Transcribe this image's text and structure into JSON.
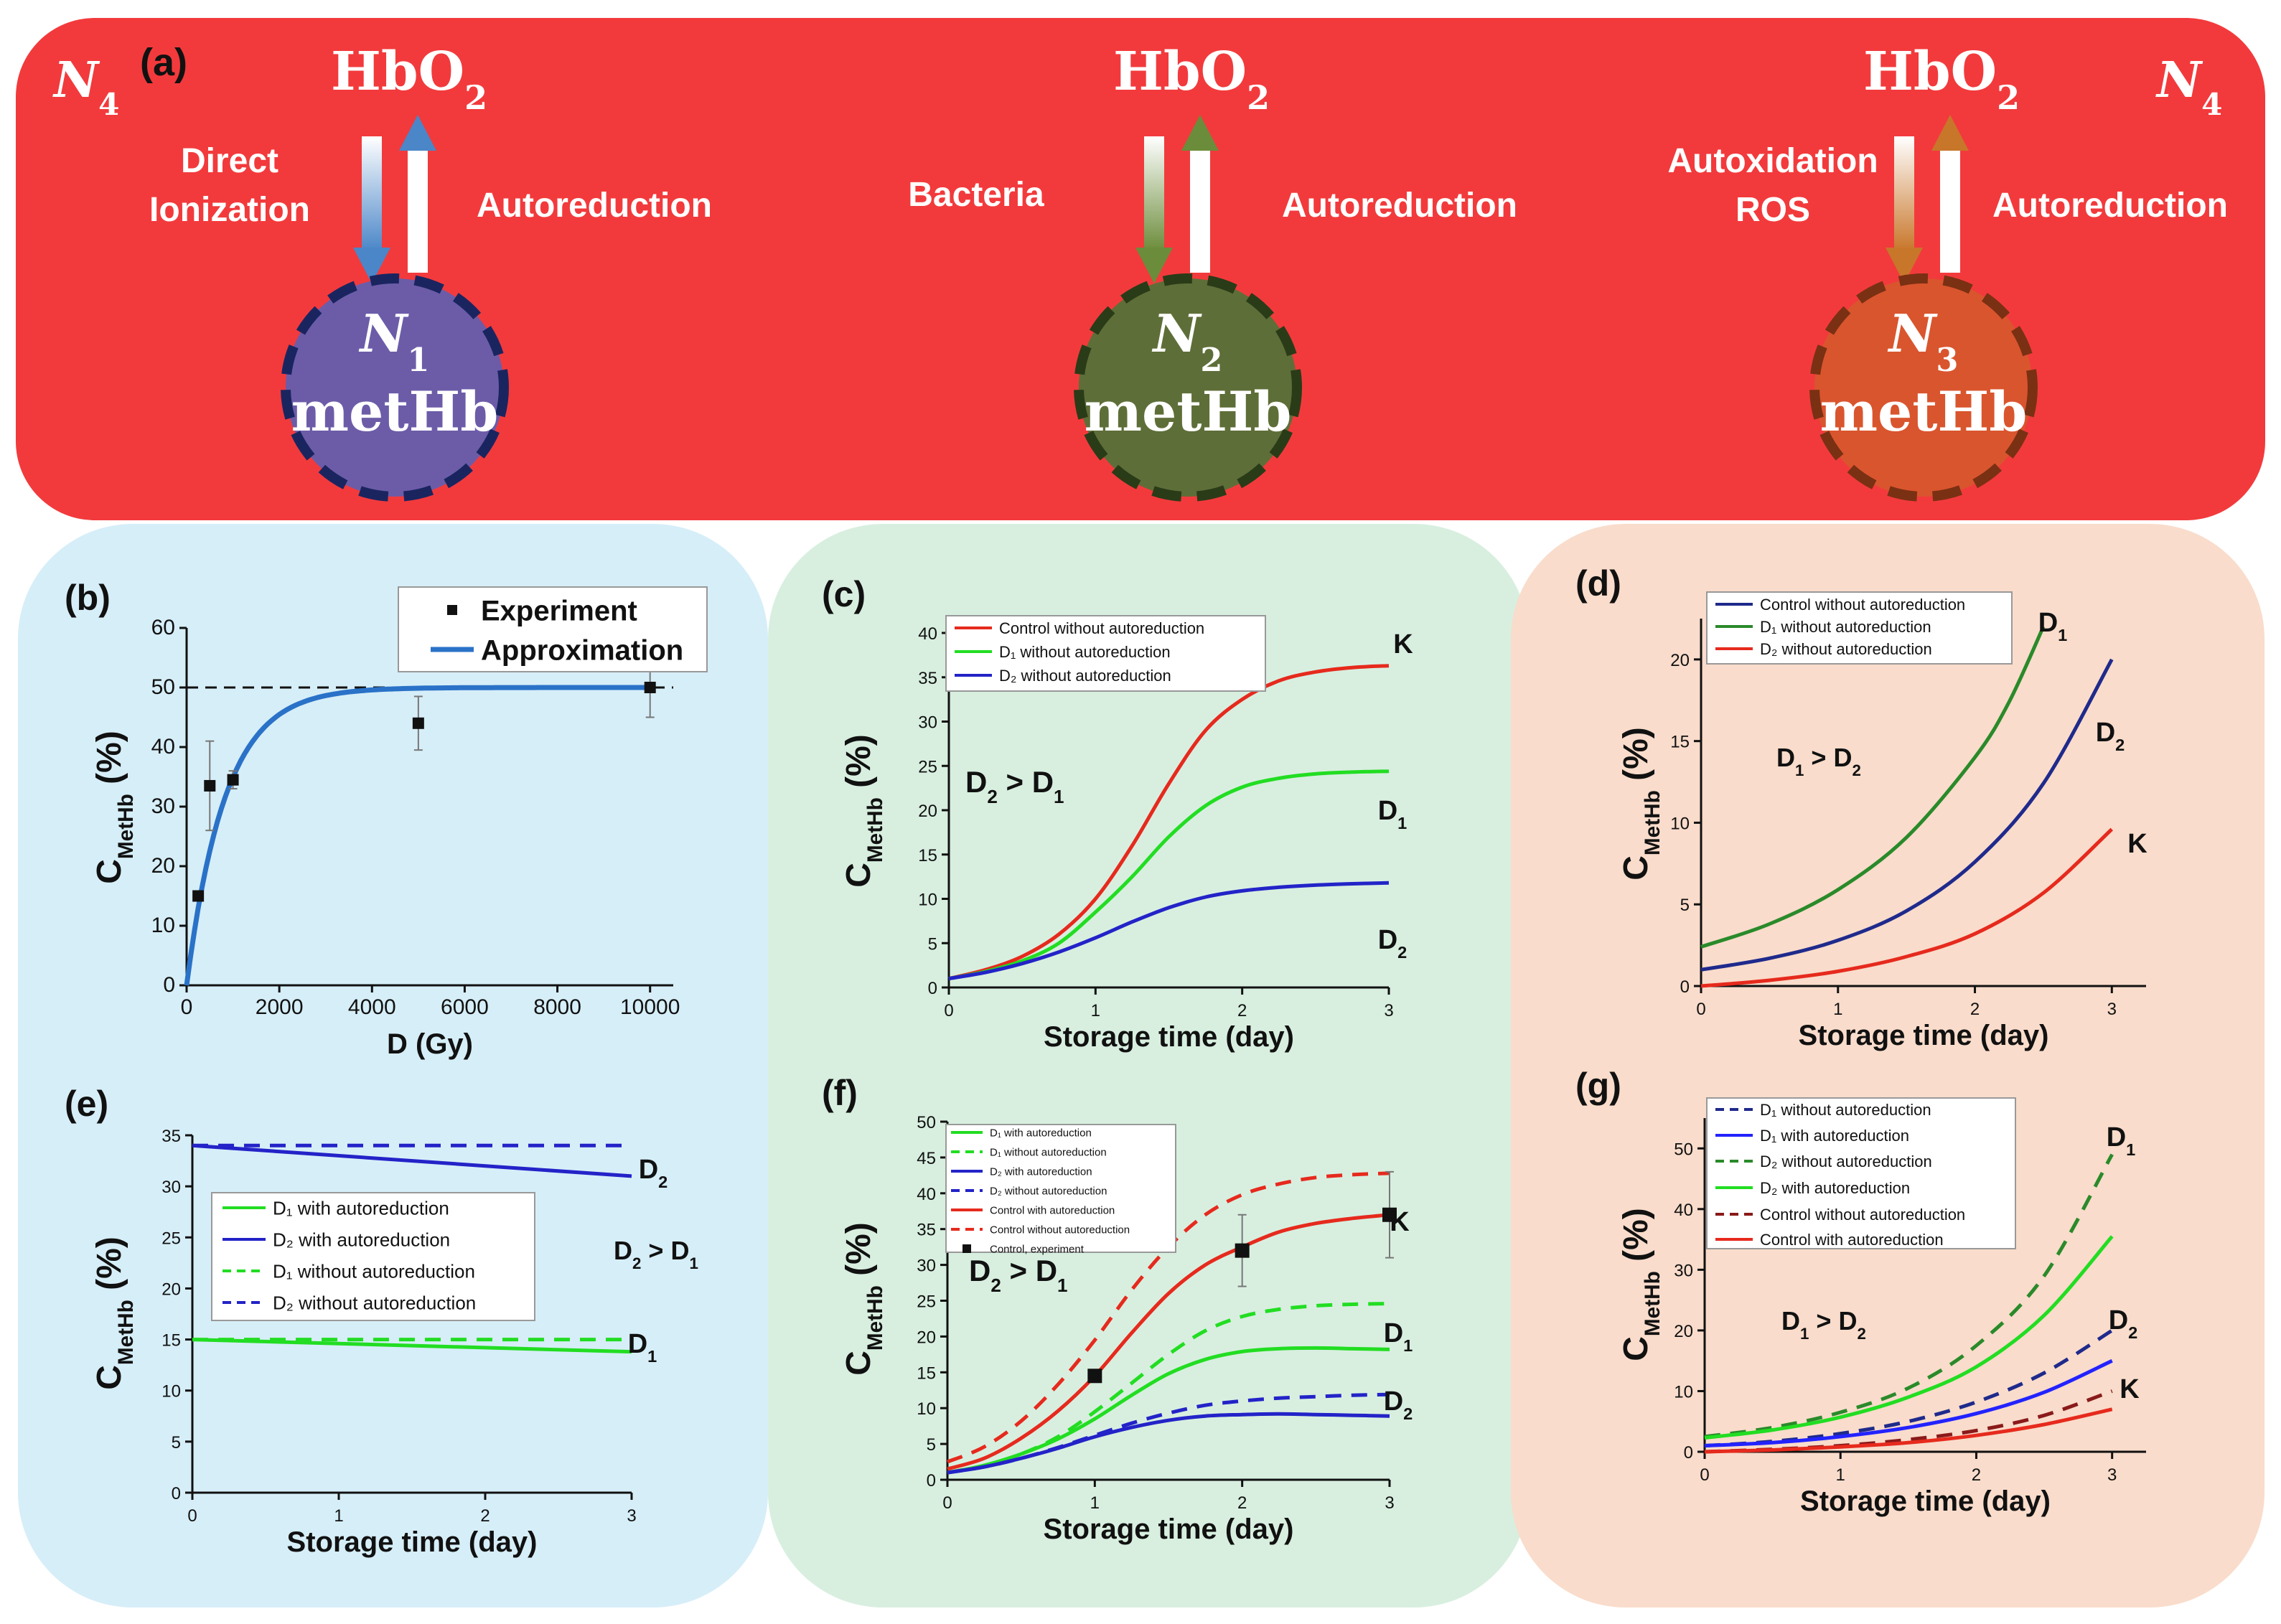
{
  "colors": {
    "banner": "#f23a3c",
    "panel_b": "#d6eef8",
    "panel_cf": "#d8efe0",
    "panel_dg": "#f9dccb",
    "red": "#e62a1d",
    "green": "#22dd22",
    "blue": "#2323c8",
    "darkgreen": "#2a8a2a",
    "navy": "#1f2a8c",
    "steel": "#2a72c8"
  },
  "panel_a": {
    "label": "(a)",
    "n4_left": "N",
    "n4_right": "N",
    "n4_sub": "4",
    "groups": [
      {
        "top": "HbO",
        "top_sub": "2",
        "left_lines": [
          "Direct",
          "Ionization"
        ],
        "right": "Autoreduction",
        "circle_letter": "N",
        "circle_sub": "1",
        "circle_label": "metHb",
        "circle_fill": "#6c5ca8",
        "circle_stroke": "#1a2560"
      },
      {
        "top": "HbO",
        "top_sub": "2",
        "left_lines": [
          "Bacteria"
        ],
        "right": "Autoreduction",
        "circle_letter": "N",
        "circle_sub": "2",
        "circle_label": "metHb",
        "circle_fill": "#5e6e38",
        "circle_stroke": "#2a3b18"
      },
      {
        "top": "HbO",
        "top_sub": "2",
        "left_lines": [
          "Autoxidation",
          "ROS"
        ],
        "right": "Autoreduction",
        "circle_letter": "N",
        "circle_sub": "3",
        "circle_label": "metHb",
        "circle_fill": "#d9552e",
        "circle_stroke": "#7a3013"
      }
    ]
  },
  "chart_data": [
    {
      "id": "b",
      "panel_label": "(b)",
      "type": "scatter",
      "xlabel": "D (Gy)",
      "ylabel": "C",
      "ylabel_sub": "MetHb",
      "ylabel_unit": " (%)",
      "xlim": [
        0,
        10500
      ],
      "ylim": [
        0,
        60
      ],
      "xticks": [
        0,
        2000,
        4000,
        6000,
        8000,
        10000
      ],
      "xtick_labels": [
        "0",
        "2000",
        "4000",
        "6000",
        "8000",
        "10000"
      ],
      "yticks": [
        0,
        10,
        20,
        30,
        40,
        50,
        60
      ],
      "ytick_labels": [
        "0",
        "10",
        "20",
        "30",
        "40",
        "50",
        "60"
      ],
      "hline": 50,
      "points": [
        {
          "x": 250,
          "y": 15,
          "err": 0
        },
        {
          "x": 500,
          "y": 33.5,
          "err": 7.5
        },
        {
          "x": 1000,
          "y": 34.5,
          "err": 1.5
        },
        {
          "x": 5000,
          "y": 44,
          "err": 4.5
        },
        {
          "x": 10000,
          "y": 50,
          "err": 5
        }
      ],
      "curve": {
        "func": "saturating",
        "ymax": 50,
        "k": 0.0012
      },
      "legend": [
        {
          "label": "Experiment",
          "kind": "marker"
        },
        {
          "label": "Approximation",
          "kind": "line"
        }
      ]
    },
    {
      "id": "c",
      "panel_label": "(c)",
      "type": "line",
      "xlabel": "Storage time (day)",
      "ylabel": "C",
      "ylabel_sub": "MetHb",
      "ylabel_unit": " (%)",
      "xlim": [
        0,
        3
      ],
      "ylim": [
        0,
        40
      ],
      "xticks": [
        0,
        1,
        2,
        3
      ],
      "xtick_labels": [
        "0",
        "1",
        "2",
        "3"
      ],
      "yticks": [
        0,
        5,
        10,
        15,
        20,
        25,
        30,
        35,
        40
      ],
      "ytick_labels": [
        "0",
        "5",
        "10",
        "15",
        "20",
        "25",
        "30",
        "35",
        "40"
      ],
      "x": [
        0,
        0.25,
        0.5,
        0.75,
        1,
        1.25,
        1.5,
        1.75,
        2,
        2.25,
        2.5,
        2.75,
        3
      ],
      "series": [
        {
          "name": "Control without autoreduction",
          "color": "#e62a1d",
          "dash": false,
          "values": [
            1,
            2,
            3.5,
            6,
            10,
            16,
            23,
            29,
            32.5,
            34.6,
            35.6,
            36.1,
            36.3
          ]
        },
        {
          "name": "D₁ without autoreduction",
          "color": "#22dd22",
          "dash": false,
          "values": [
            1,
            1.8,
            3,
            5,
            8.5,
            12.5,
            17,
            20.5,
            22.6,
            23.6,
            24.1,
            24.3,
            24.4
          ]
        },
        {
          "name": "D₂ without autoreduction",
          "color": "#2323c8",
          "dash": false,
          "values": [
            1,
            1.7,
            2.7,
            4,
            5.6,
            7.4,
            9,
            10.2,
            10.9,
            11.3,
            11.55,
            11.7,
            11.8
          ]
        }
      ],
      "annotations": [
        {
          "text": "K"
        },
        {
          "text": "D",
          "sub": "1"
        },
        {
          "text": "D",
          "sub": "2"
        }
      ],
      "inequality": {
        "a": "D",
        "a_sub": "2",
        "op": " > ",
        "b": "D",
        "b_sub": "1"
      }
    },
    {
      "id": "d",
      "panel_label": "(d)",
      "type": "line",
      "xlabel": "Storage time (day)",
      "ylabel": "C",
      "ylabel_sub": "MetHb",
      "ylabel_unit": " (%)",
      "xlim": [
        0,
        3.25
      ],
      "ylim": [
        0,
        22.5
      ],
      "xticks": [
        0,
        1,
        2,
        3
      ],
      "xtick_labels": [
        "0",
        "1",
        "2",
        "3"
      ],
      "yticks": [
        0,
        5,
        10,
        15,
        20
      ],
      "ytick_labels": [
        "0",
        "5",
        "10",
        "15",
        "20"
      ],
      "series": [
        {
          "name": "Control without autoreduction",
          "color": "#1f2a8c",
          "dash": false,
          "x": [
            0,
            0.5,
            1,
            1.5,
            2,
            2.5,
            3
          ],
          "values": [
            1,
            1.7,
            2.8,
            4.6,
            7.6,
            12.4,
            20
          ]
        },
        {
          "name": "D₁ without autoreduction",
          "color": "#2a8a2a",
          "dash": false,
          "x": [
            0,
            0.5,
            1,
            1.5,
            2,
            2.25,
            2.5
          ],
          "values": [
            2.4,
            3.8,
            5.9,
            9.1,
            14,
            17.4,
            22
          ]
        },
        {
          "name": "D₂ without autoreduction",
          "color": "#e62a1d",
          "dash": false,
          "x": [
            0,
            0.5,
            1,
            1.5,
            2,
            2.5,
            3
          ],
          "values": [
            0,
            0.35,
            0.9,
            1.8,
            3.2,
            5.7,
            9.6
          ]
        }
      ],
      "annotations": [
        {
          "text": "D",
          "sub": "1"
        },
        {
          "text": "D",
          "sub": "2"
        },
        {
          "text": "K"
        }
      ],
      "inequality": {
        "a": "D",
        "a_sub": "1",
        "op": " > ",
        "b": "D",
        "b_sub": "2"
      }
    },
    {
      "id": "e",
      "panel_label": "(e)",
      "type": "line",
      "xlabel": "Storage time (day)",
      "ylabel": "C",
      "ylabel_sub": "MetHb",
      "ylabel_unit": " (%)",
      "xlim": [
        0,
        3
      ],
      "ylim": [
        0,
        35
      ],
      "xticks": [
        0,
        1,
        2,
        3
      ],
      "xtick_labels": [
        "0",
        "1",
        "2",
        "3"
      ],
      "yticks": [
        0,
        5,
        10,
        15,
        20,
        25,
        30,
        35
      ],
      "ytick_labels": [
        "0",
        "5",
        "10",
        "15",
        "20",
        "25",
        "30",
        "35"
      ],
      "x": [
        0,
        3
      ],
      "series": [
        {
          "name": "D₁ with autoreduction",
          "color": "#22dd22",
          "dash": false,
          "values": [
            15,
            13.8
          ]
        },
        {
          "name": "D₂ with autoreduction",
          "color": "#2323c8",
          "dash": false,
          "values": [
            34,
            31
          ]
        },
        {
          "name": "D₁ without autoreduction",
          "color": "#22dd22",
          "dash": true,
          "values": [
            15,
            15
          ]
        },
        {
          "name": "D₂ without autoreduction",
          "color": "#2323c8",
          "dash": true,
          "values": [
            34,
            34
          ]
        }
      ],
      "annotations": [
        {
          "text": "D",
          "sub": "2"
        },
        {
          "text": "D",
          "sub": "1"
        }
      ],
      "inequality": {
        "a": "D",
        "a_sub": "2",
        "op": " > ",
        "b": "D",
        "b_sub": "1"
      }
    },
    {
      "id": "f",
      "panel_label": "(f)",
      "type": "line",
      "xlabel": "Storage time (day)",
      "ylabel": "C",
      "ylabel_sub": "MetHb",
      "ylabel_unit": " (%)",
      "xlim": [
        0,
        3
      ],
      "ylim": [
        0,
        50
      ],
      "xticks": [
        0,
        1,
        2,
        3
      ],
      "xtick_labels": [
        "0",
        "1",
        "2",
        "3"
      ],
      "yticks": [
        0,
        5,
        10,
        15,
        20,
        25,
        30,
        35,
        40,
        45,
        50
      ],
      "ytick_labels": [
        "0",
        "5",
        "10",
        "15",
        "20",
        "25",
        "30",
        "35",
        "40",
        "45",
        "50"
      ],
      "x": [
        0,
        0.25,
        0.5,
        0.75,
        1,
        1.25,
        1.5,
        1.75,
        2,
        2.25,
        2.5,
        2.75,
        3
      ],
      "series": [
        {
          "name": "D₁ with autoreduction",
          "color": "#22dd22",
          "dash": false,
          "values": [
            1,
            2,
            3.6,
            5.7,
            8.5,
            11.8,
            14.8,
            16.8,
            17.9,
            18.3,
            18.4,
            18.3,
            18.2
          ]
        },
        {
          "name": "D₁ without autoreduction",
          "color": "#22dd22",
          "dash": true,
          "values": [
            1,
            2,
            3.6,
            6,
            9.5,
            13.5,
            17.5,
            20.8,
            22.8,
            23.8,
            24.3,
            24.5,
            24.6
          ]
        },
        {
          "name": "D₂ with autoreduction",
          "color": "#2323c8",
          "dash": false,
          "values": [
            1,
            1.8,
            3,
            4.4,
            6,
            7.3,
            8.3,
            8.9,
            9.1,
            9.2,
            9.1,
            9,
            8.9
          ]
        },
        {
          "name": "D₂ without autoreduction",
          "color": "#2323c8",
          "dash": true,
          "values": [
            1,
            1.8,
            3,
            4.5,
            6.2,
            7.9,
            9.3,
            10.4,
            11,
            11.4,
            11.6,
            11.8,
            11.9
          ]
        },
        {
          "name": "Control with autoreduction",
          "color": "#e62a1d",
          "dash": false,
          "values": [
            1.5,
            3,
            5.8,
            9.6,
            14.5,
            20.5,
            26,
            30,
            32.5,
            34.6,
            35.8,
            36.5,
            37
          ]
        },
        {
          "name": "Control without autoreduction",
          "color": "#e62a1d",
          "dash": true,
          "values": [
            2.5,
            4.6,
            8.2,
            13.3,
            19.5,
            26.5,
            32.5,
            37,
            39.8,
            41.3,
            42.2,
            42.6,
            42.8
          ]
        }
      ],
      "points": [
        {
          "x": 1,
          "y": 14.5,
          "err": 0
        },
        {
          "x": 2,
          "y": 32,
          "err": 5
        },
        {
          "x": 3,
          "y": 37,
          "err": 6
        }
      ],
      "points_legend": "Control, experiment",
      "annotations": [
        {
          "text": "K"
        },
        {
          "text": "D",
          "sub": "1"
        },
        {
          "text": "D",
          "sub": "2"
        }
      ],
      "inequality": {
        "a": "D",
        "a_sub": "2",
        "op": " > ",
        "b": "D",
        "b_sub": "1"
      }
    },
    {
      "id": "g",
      "panel_label": "(g)",
      "type": "line",
      "xlabel": "Storage time (day)",
      "ylabel": "C",
      "ylabel_sub": "MetHb",
      "ylabel_unit": " (%)",
      "xlim": [
        0,
        3.25
      ],
      "ylim": [
        0,
        55
      ],
      "xticks": [
        0,
        1,
        2,
        3
      ],
      "xtick_labels": [
        "0",
        "1",
        "2",
        "3"
      ],
      "yticks": [
        0,
        10,
        20,
        30,
        40,
        50
      ],
      "ytick_labels": [
        "0",
        "10",
        "20",
        "30",
        "40",
        "50"
      ],
      "x": [
        0,
        0.5,
        1,
        1.5,
        2,
        2.5,
        3
      ],
      "series": [
        {
          "name": "D₁ without autoreduction",
          "color": "#1f2a8c",
          "dash": true,
          "values": [
            1,
            1.7,
            3,
            5,
            8.2,
            13,
            20
          ]
        },
        {
          "name": "D₁ with autoreduction",
          "color": "#2323ff",
          "dash": false,
          "values": [
            1,
            1.5,
            2.5,
            4,
            6.3,
            9.8,
            15
          ]
        },
        {
          "name": "D₂ without autoreduction",
          "color": "#2a8a2a",
          "dash": true,
          "values": [
            2.5,
            4,
            6.5,
            10.5,
            17.5,
            29,
            49
          ]
        },
        {
          "name": "D₂ with autoreduction",
          "color": "#22dd22",
          "dash": false,
          "values": [
            2.3,
            3.6,
            5.7,
            9,
            14,
            22.5,
            35.5
          ]
        },
        {
          "name": "Control  without autoreduction",
          "color": "#8a1a1a",
          "dash": true,
          "values": [
            0,
            0.4,
            1,
            2,
            3.5,
            6,
            10
          ]
        },
        {
          "name": "Control with autoreduction",
          "color": "#e62a1d",
          "dash": false,
          "values": [
            0,
            0.3,
            0.8,
            1.5,
            2.7,
            4.5,
            7
          ]
        }
      ],
      "annotations": [
        {
          "text": "D",
          "sub": "1"
        },
        {
          "text": "D",
          "sub": "2"
        },
        {
          "text": "K"
        }
      ],
      "inequality": {
        "a": "D",
        "a_sub": "1",
        "op": " > ",
        "b": "D",
        "b_sub": "2"
      }
    }
  ]
}
